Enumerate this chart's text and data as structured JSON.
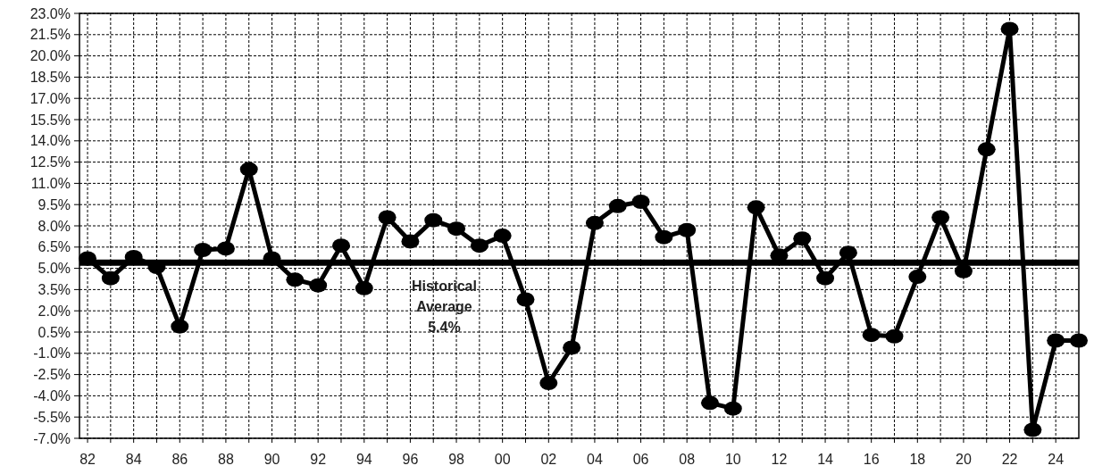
{
  "chart_data": {
    "type": "line",
    "x": [
      1982,
      1983,
      1984,
      1985,
      1986,
      1987,
      1988,
      1989,
      1990,
      1991,
      1992,
      1993,
      1994,
      1995,
      1996,
      1997,
      1998,
      1999,
      2000,
      2001,
      2002,
      2003,
      2004,
      2005,
      2006,
      2007,
      2008,
      2009,
      2010,
      2011,
      2012,
      2013,
      2014,
      2015,
      2016,
      2017,
      2018,
      2019,
      2020,
      2021,
      2022,
      2023,
      2024,
      2025
    ],
    "series": [
      {
        "color": "#000000",
        "values": [
          5.7,
          4.3,
          5.8,
          5.1,
          0.9,
          6.3,
          6.4,
          12.0,
          5.7,
          4.2,
          3.8,
          6.6,
          3.6,
          8.6,
          6.9,
          8.4,
          7.8,
          6.6,
          7.3,
          2.8,
          -3.1,
          -0.6,
          8.2,
          9.4,
          9.7,
          7.2,
          7.7,
          -4.5,
          -4.9,
          9.3,
          5.9,
          7.1,
          4.3,
          6.1,
          0.3,
          0.2,
          4.4,
          8.6,
          4.8,
          13.4,
          21.9,
          -6.4,
          -0.1,
          -0.1
        ]
      }
    ],
    "xlim": [
      1981.65,
      2025
    ],
    "xticks": [
      {
        "value": 1982,
        "label": "82"
      },
      {
        "value": 1983,
        "label": null
      },
      {
        "value": 1984,
        "label": "84"
      },
      {
        "value": 1985,
        "label": null
      },
      {
        "value": 1986,
        "label": "86"
      },
      {
        "value": 1987,
        "label": null
      },
      {
        "value": 1988,
        "label": "88"
      },
      {
        "value": 1989,
        "label": null
      },
      {
        "value": 1990,
        "label": "90"
      },
      {
        "value": 1991,
        "label": null
      },
      {
        "value": 1992,
        "label": "92"
      },
      {
        "value": 1993,
        "label": null
      },
      {
        "value": 1994,
        "label": "94"
      },
      {
        "value": 1995,
        "label": null
      },
      {
        "value": 1996,
        "label": "96"
      },
      {
        "value": 1997,
        "label": null
      },
      {
        "value": 1998,
        "label": "98"
      },
      {
        "value": 1999,
        "label": null
      },
      {
        "value": 2000,
        "label": "00"
      },
      {
        "value": 2001,
        "label": null
      },
      {
        "value": 2002,
        "label": "02"
      },
      {
        "value": 2003,
        "label": null
      },
      {
        "value": 2004,
        "label": "04"
      },
      {
        "value": 2005,
        "label": null
      },
      {
        "value": 2006,
        "label": "06"
      },
      {
        "value": 2007,
        "label": null
      },
      {
        "value": 2008,
        "label": "08"
      },
      {
        "value": 2009,
        "label": null
      },
      {
        "value": 2010,
        "label": "10"
      },
      {
        "value": 2011,
        "label": null
      },
      {
        "value": 2012,
        "label": "12"
      },
      {
        "value": 2013,
        "label": null
      },
      {
        "value": 2014,
        "label": "14"
      },
      {
        "value": 2015,
        "label": null
      },
      {
        "value": 2016,
        "label": "16"
      },
      {
        "value": 2017,
        "label": null
      },
      {
        "value": 2018,
        "label": "18"
      },
      {
        "value": 2019,
        "label": null
      },
      {
        "value": 2020,
        "label": "20"
      },
      {
        "value": 2021,
        "label": null
      },
      {
        "value": 2022,
        "label": "22"
      },
      {
        "value": 2023,
        "label": null
      },
      {
        "value": 2024,
        "label": "24"
      }
    ],
    "ylim": [
      -7.0,
      23.0
    ],
    "yticks": [
      {
        "value": -7.0,
        "label": "-7.0%"
      },
      {
        "value": -5.5,
        "label": "-5.5%"
      },
      {
        "value": -4.0,
        "label": "-4.0%"
      },
      {
        "value": -2.5,
        "label": "-2.5%"
      },
      {
        "value": -1.0,
        "label": "-1.0%"
      },
      {
        "value": 0.5,
        "label": "0.5%"
      },
      {
        "value": 2.0,
        "label": "2.0%"
      },
      {
        "value": 3.5,
        "label": "3.5%"
      },
      {
        "value": 5.0,
        "label": "5.0%"
      },
      {
        "value": 6.5,
        "label": "6.5%"
      },
      {
        "value": 8.0,
        "label": "8.0%"
      },
      {
        "value": 9.5,
        "label": "9.5%"
      },
      {
        "value": 11.0,
        "label": "11.0%"
      },
      {
        "value": 12.5,
        "label": "12.5%"
      },
      {
        "value": 14.0,
        "label": "14.0%"
      },
      {
        "value": 15.5,
        "label": "15.5%"
      },
      {
        "value": 17.0,
        "label": "17.0%"
      },
      {
        "value": 18.5,
        "label": "18.5%"
      },
      {
        "value": 20.0,
        "label": "20.0%"
      },
      {
        "value": 21.5,
        "label": "21.5%"
      },
      {
        "value": 23.0,
        "label": "23.0%"
      }
    ],
    "ref_lines": [
      {
        "axis": "y",
        "value": 5.4,
        "label": "Historical Average 5.4%",
        "color": "#000000"
      }
    ],
    "grid": true,
    "marker": "circle",
    "line_style": "solid"
  }
}
